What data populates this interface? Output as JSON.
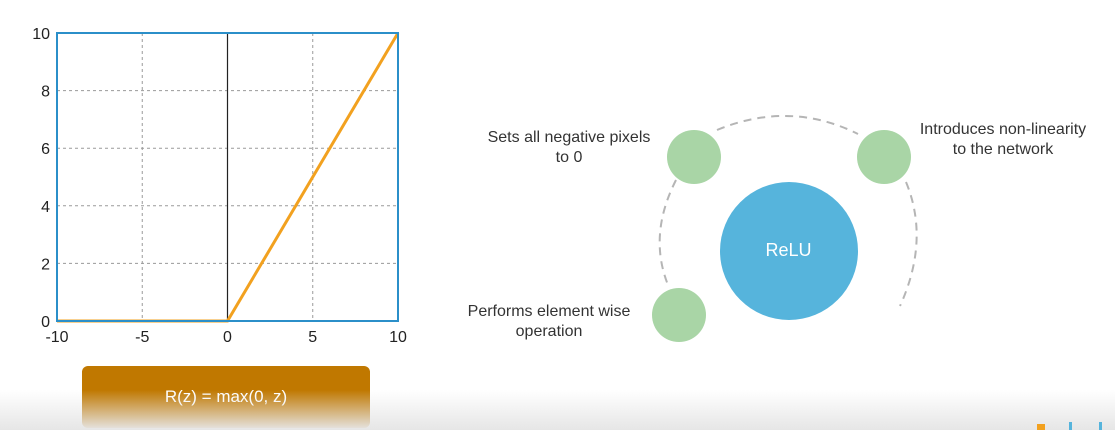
{
  "chart_data": {
    "type": "line",
    "title": "",
    "xlabel": "",
    "ylabel": "",
    "xlim": [
      -10,
      10
    ],
    "ylim": [
      0,
      10
    ],
    "x_ticks": [
      -10,
      -5,
      0,
      5,
      10
    ],
    "y_ticks": [
      0,
      2,
      4,
      6,
      8,
      10
    ],
    "grid": true,
    "series": [
      {
        "x": [
          -10,
          0,
          10
        ],
        "y": [
          0,
          0,
          10
        ],
        "color": "#f2a11f"
      }
    ],
    "colors": {
      "frame": "#2b8fc9",
      "grid": "#9a9a9a",
      "zero_axis": "#222222"
    }
  },
  "formula": {
    "text": "R(z) = max(0, z)",
    "color": "#c07800"
  },
  "diagram": {
    "center": {
      "label": "ReLU",
      "color": "#56b4dc"
    },
    "node_color": "#a9d5a6",
    "nodes": [
      {
        "label_line1": "Sets all negative pixels",
        "label_line2": "to 0"
      },
      {
        "label_line1": "Introduces non-linearity",
        "label_line2": "to the network"
      },
      {
        "label_line1": "Performs element wise",
        "label_line2": "operation"
      }
    ]
  }
}
